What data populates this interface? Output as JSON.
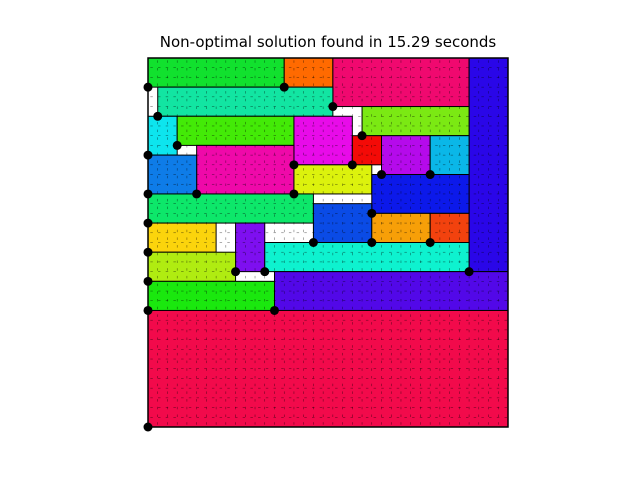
{
  "title": "Non-optimal solution found in 15.29 seconds",
  "grid": {
    "cols": 37,
    "rows": 38,
    "empty_color": "#ffffff",
    "border_color": "#000000",
    "mark_color": "#000000"
  },
  "pieces": [
    {
      "c": 0,
      "r": 0,
      "w": 14,
      "h": 3,
      "color": "#11e12e"
    },
    {
      "c": 14,
      "r": 0,
      "w": 5,
      "h": 3,
      "color": "#ff6a00"
    },
    {
      "c": 19,
      "r": 0,
      "w": 14,
      "h": 5,
      "color": "#f0096f"
    },
    {
      "c": 33,
      "r": 0,
      "w": 4,
      "h": 22,
      "color": "#2a06e8"
    },
    {
      "c": 1,
      "r": 3,
      "w": 18,
      "h": 3,
      "color": "#12e5a2"
    },
    {
      "c": 22,
      "r": 5,
      "w": 11,
      "h": 3,
      "color": "#7be913"
    },
    {
      "c": 0,
      "r": 6,
      "w": 3,
      "h": 4,
      "color": "#0de5ee"
    },
    {
      "c": 3,
      "r": 6,
      "w": 12,
      "h": 3,
      "color": "#43ea07"
    },
    {
      "c": 15,
      "r": 6,
      "w": 6,
      "h": 5,
      "color": "#e80be9"
    },
    {
      "c": 21,
      "r": 8,
      "w": 3,
      "h": 3,
      "color": "#f40a07"
    },
    {
      "c": 24,
      "r": 8,
      "w": 5,
      "h": 4,
      "color": "#b50aeb"
    },
    {
      "c": 29,
      "r": 8,
      "w": 4,
      "h": 4,
      "color": "#0ab7e8"
    },
    {
      "c": 5,
      "r": 9,
      "w": 10,
      "h": 5,
      "color": "#ef09a9"
    },
    {
      "c": 0,
      "r": 10,
      "w": 5,
      "h": 4,
      "color": "#0e7ce8"
    },
    {
      "c": 15,
      "r": 11,
      "w": 8,
      "h": 3,
      "color": "#dcf20d"
    },
    {
      "c": 23,
      "r": 12,
      "w": 10,
      "h": 4,
      "color": "#0c19ea"
    },
    {
      "c": 0,
      "r": 14,
      "w": 17,
      "h": 3,
      "color": "#0de76a"
    },
    {
      "c": 17,
      "r": 15,
      "w": 6,
      "h": 4,
      "color": "#0a4be6"
    },
    {
      "c": 23,
      "r": 16,
      "w": 6,
      "h": 3,
      "color": "#f79f08"
    },
    {
      "c": 29,
      "r": 16,
      "w": 4,
      "h": 3,
      "color": "#f2420e"
    },
    {
      "c": 0,
      "r": 17,
      "w": 7,
      "h": 3,
      "color": "#fbd40c"
    },
    {
      "c": 9,
      "r": 17,
      "w": 3,
      "h": 5,
      "color": "#7e0ff0"
    },
    {
      "c": 12,
      "r": 19,
      "w": 21,
      "h": 3,
      "color": "#0ef2cf"
    },
    {
      "c": 0,
      "r": 20,
      "w": 9,
      "h": 3,
      "color": "#b0ec11"
    },
    {
      "c": 13,
      "r": 22,
      "w": 24,
      "h": 4,
      "color": "#5208e8"
    },
    {
      "c": 0,
      "r": 23,
      "w": 13,
      "h": 3,
      "color": "#1ae80e"
    },
    {
      "c": 0,
      "r": 26,
      "w": 37,
      "h": 12,
      "color": "#f20a4b"
    }
  ],
  "dots": [
    [
      0,
      3
    ],
    [
      14,
      3
    ],
    [
      19,
      5
    ],
    [
      1,
      6
    ],
    [
      22,
      8
    ],
    [
      0,
      10
    ],
    [
      3,
      9
    ],
    [
      15,
      11
    ],
    [
      21,
      11
    ],
    [
      24,
      12
    ],
    [
      29,
      12
    ],
    [
      0,
      14
    ],
    [
      5,
      14
    ],
    [
      15,
      14
    ],
    [
      23,
      16
    ],
    [
      0,
      17
    ],
    [
      17,
      19
    ],
    [
      23,
      19
    ],
    [
      29,
      19
    ],
    [
      0,
      20
    ],
    [
      9,
      22
    ],
    [
      12,
      22
    ],
    [
      33,
      22
    ],
    [
      0,
      23
    ],
    [
      13,
      26
    ],
    [
      0,
      26
    ],
    [
      0,
      38
    ]
  ]
}
